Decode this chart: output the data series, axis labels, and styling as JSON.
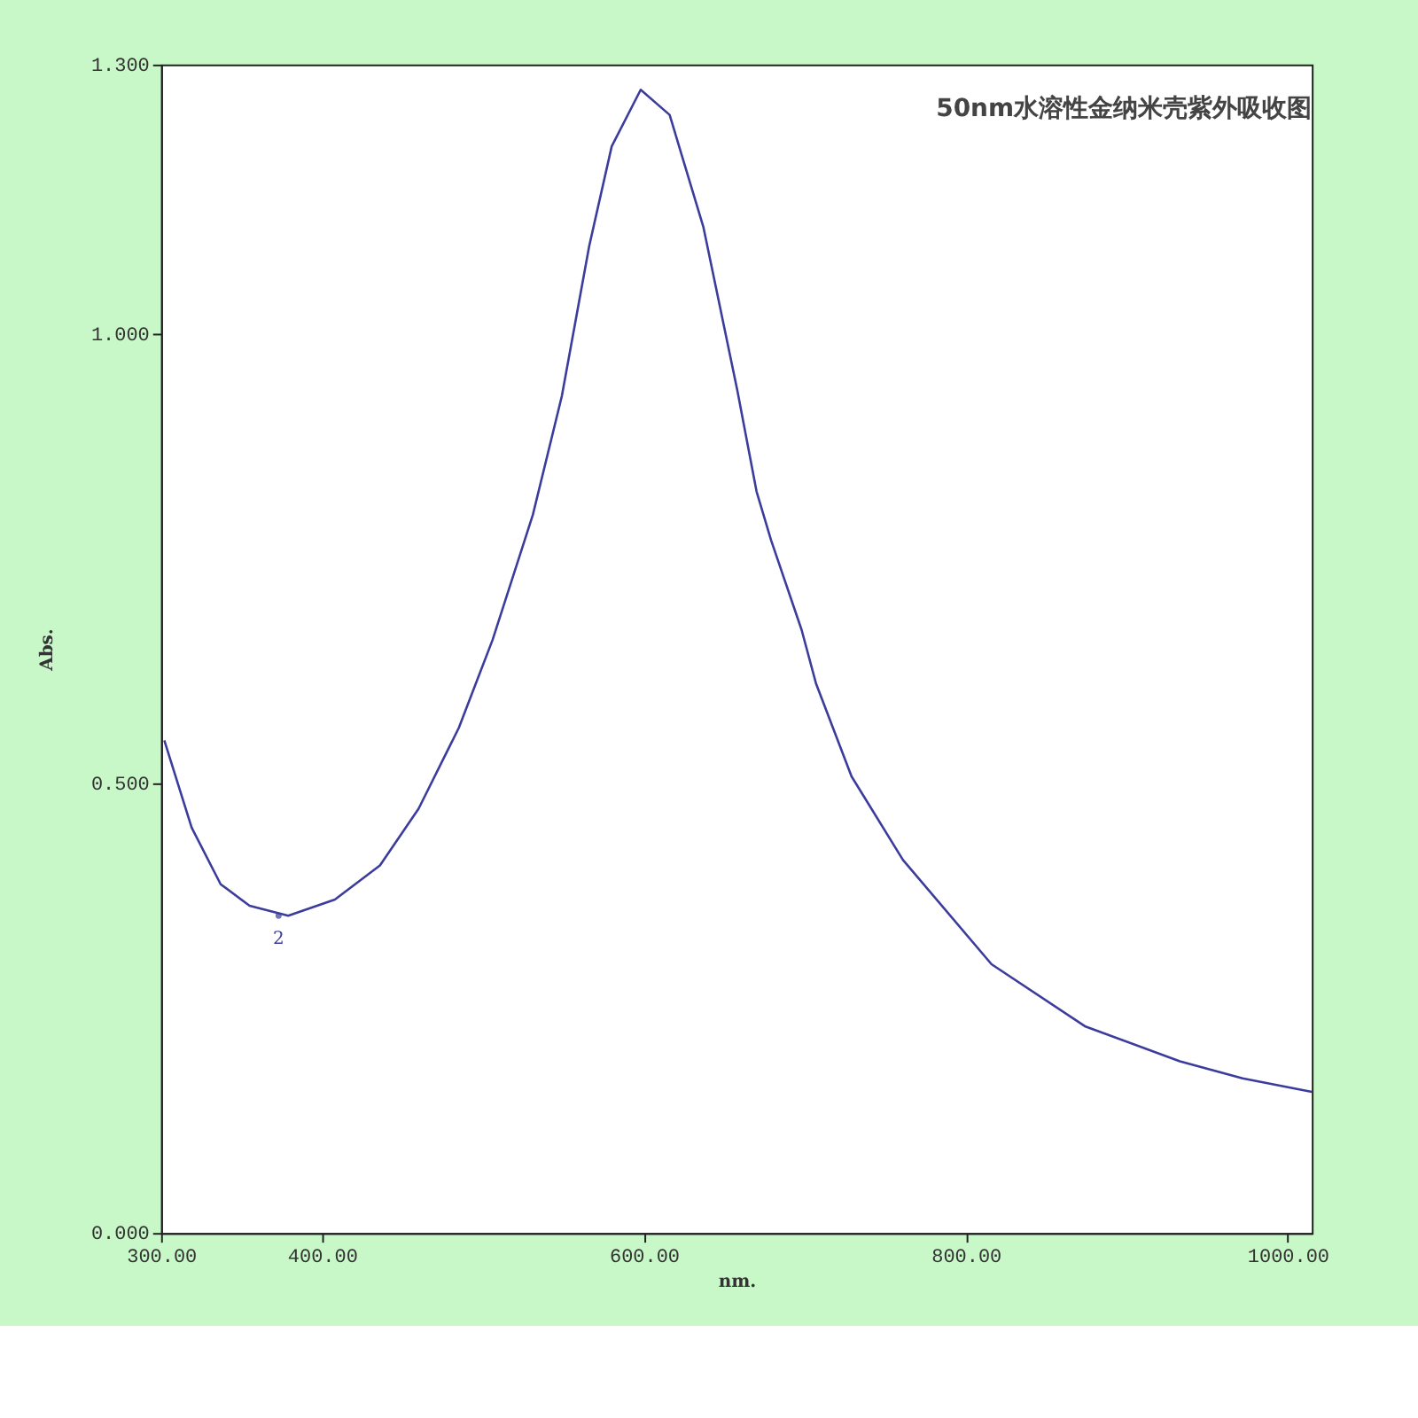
{
  "chart_data": {
    "type": "line",
    "title": "50nm水溶性金纳米壳紫外吸收图",
    "xlabel": "nm.",
    "ylabel": "Abs.",
    "x": [
      302,
      319,
      337,
      355,
      379,
      408,
      436,
      460,
      485,
      506,
      531,
      549,
      566,
      580,
      598,
      616,
      637,
      658,
      670,
      679,
      698,
      707,
      729,
      761,
      816,
      874,
      933,
      972,
      1015
    ],
    "series": [
      {
        "color": "#3c3c9c",
        "values": [
          0.548,
          0.451,
          0.388,
          0.364,
          0.353,
          0.371,
          0.409,
          0.472,
          0.562,
          0.66,
          0.799,
          0.931,
          1.098,
          1.209,
          1.272,
          1.244,
          1.119,
          0.938,
          0.825,
          0.771,
          0.671,
          0.611,
          0.508,
          0.415,
          0.299,
          0.23,
          0.191,
          0.172,
          0.157
        ]
      }
    ],
    "xlim": [
      300,
      1015
    ],
    "ylim": [
      0,
      1.3
    ],
    "xticks": [
      {
        "value": 300,
        "label": "300.00"
      },
      {
        "value": 400,
        "label": "400.00"
      },
      {
        "value": 600,
        "label": "600.00"
      },
      {
        "value": 800,
        "label": "800.00"
      },
      {
        "value": 1000,
        "label": "1000.00"
      }
    ],
    "yticks": [
      {
        "value": 0,
        "label": "0.000"
      },
      {
        "value": 0.5,
        "label": "0.500"
      },
      {
        "value": 1.0,
        "label": "1.000"
      },
      {
        "value": 1.3,
        "label": "1.300"
      }
    ],
    "annotations": [
      {
        "text": "2",
        "x": 373,
        "y": 0.353
      }
    ],
    "grid": false,
    "marker": "none",
    "line_style": "solid"
  }
}
